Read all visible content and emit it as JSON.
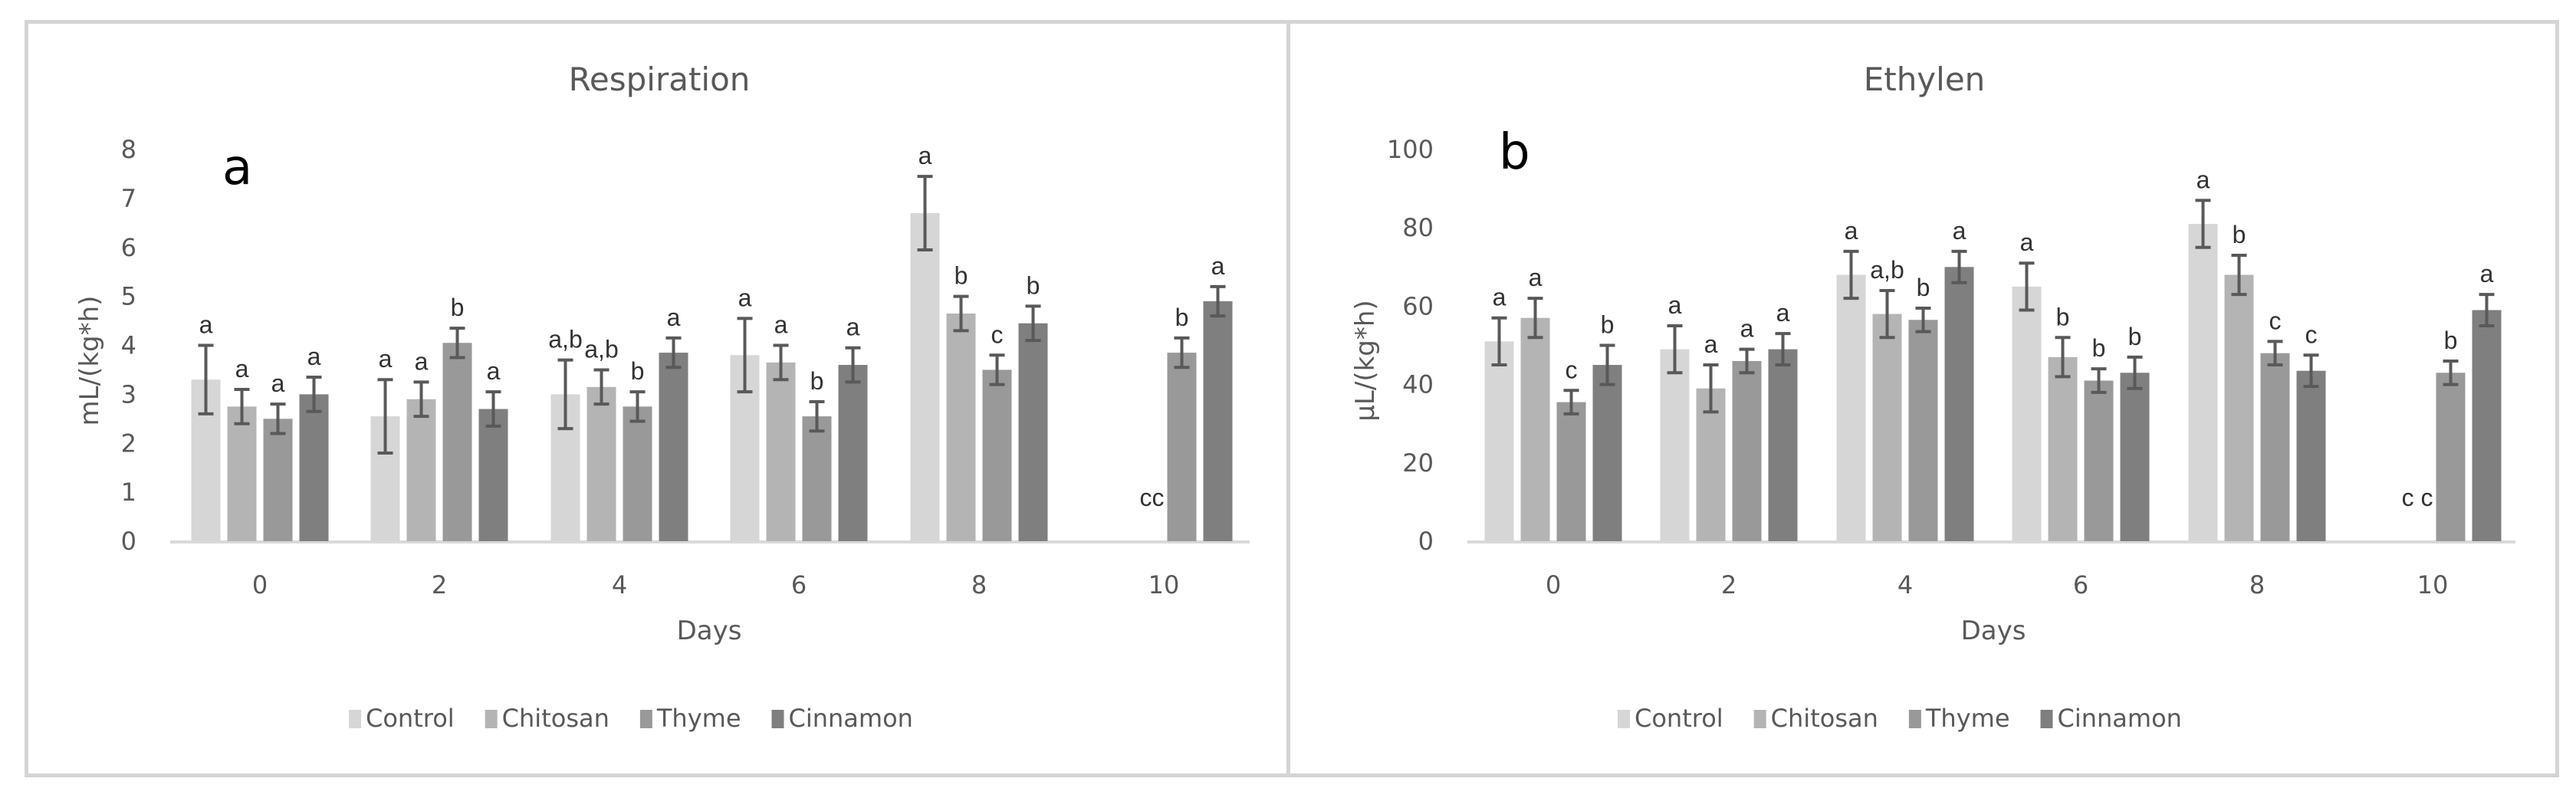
{
  "legend": {
    "series": [
      {
        "name": "Control",
        "color": "#d6d6d6"
      },
      {
        "name": "Chitosan",
        "color": "#b4b4b4"
      },
      {
        "name": "Thyme",
        "color": "#999999"
      },
      {
        "name": "Cinnamon",
        "color": "#7f7f7f"
      }
    ]
  },
  "chart_data": [
    {
      "type": "bar",
      "panel_label": "a",
      "title": "Respiration",
      "xlabel": "Days",
      "ylabel": "mL/(kg*h)",
      "ylim": [
        0,
        8
      ],
      "yticks": [
        0,
        1,
        2,
        3,
        4,
        5,
        6,
        7,
        8
      ],
      "grid": false,
      "legend_position": "bottom",
      "categories": [
        "0",
        "2",
        "4",
        "6",
        "8",
        "10"
      ],
      "series": [
        {
          "name": "Control",
          "values": [
            3.3,
            2.55,
            3.0,
            3.8,
            6.7,
            0
          ],
          "errors": [
            0.7,
            0.75,
            0.7,
            0.75,
            0.75,
            0
          ],
          "letters": [
            "a",
            "a",
            "a,b",
            "a",
            "a",
            "c"
          ]
        },
        {
          "name": "Chitosan",
          "values": [
            2.75,
            2.9,
            3.15,
            3.65,
            4.65,
            0
          ],
          "errors": [
            0.35,
            0.35,
            0.35,
            0.35,
            0.35,
            0
          ],
          "letters": [
            "a",
            "a",
            "a,b",
            "a",
            "b",
            "c"
          ]
        },
        {
          "name": "Thyme",
          "values": [
            2.5,
            4.05,
            2.75,
            2.55,
            3.5,
            3.85
          ],
          "errors": [
            0.3,
            0.3,
            0.3,
            0.3,
            0.3,
            0.3
          ],
          "letters": [
            "a",
            "b",
            "b",
            "b",
            "c",
            "b"
          ]
        },
        {
          "name": "Cinnamon",
          "values": [
            3.0,
            2.7,
            3.85,
            3.6,
            4.45,
            4.9
          ],
          "errors": [
            0.35,
            0.35,
            0.3,
            0.35,
            0.35,
            0.3
          ],
          "letters": [
            "a",
            "a",
            "a",
            "a",
            "b",
            "a"
          ]
        }
      ],
      "annotations": [
        "cc (Control & Chitosan at day 10 = 0)"
      ]
    },
    {
      "type": "bar",
      "panel_label": "b",
      "title": "Ethylen",
      "xlabel": "Days",
      "ylabel": "µL/(kg*h)",
      "ylim": [
        0,
        100
      ],
      "yticks": [
        0,
        20,
        40,
        60,
        80,
        100
      ],
      "grid": false,
      "legend_position": "bottom",
      "categories": [
        "0",
        "2",
        "4",
        "6",
        "8",
        "10"
      ],
      "series": [
        {
          "name": "Control",
          "values": [
            51,
            49,
            68,
            65,
            81,
            0
          ],
          "errors": [
            6,
            6,
            6,
            6,
            6,
            0
          ],
          "letters": [
            "a",
            "a",
            "a",
            "a",
            "a",
            "c"
          ]
        },
        {
          "name": "Chitosan",
          "values": [
            57,
            39,
            58,
            47,
            68,
            0
          ],
          "errors": [
            5,
            6,
            6,
            5,
            5,
            0
          ],
          "letters": [
            "a",
            "a",
            "a,b",
            "b",
            "b",
            "c"
          ]
        },
        {
          "name": "Thyme",
          "values": [
            35.5,
            46,
            56.5,
            41,
            48,
            43
          ],
          "errors": [
            3,
            3,
            3,
            3,
            3,
            3
          ],
          "letters": [
            "c",
            "a",
            "b",
            "b",
            "c",
            "b"
          ]
        },
        {
          "name": "Cinnamon",
          "values": [
            45,
            49,
            70,
            43,
            43.5,
            59
          ],
          "errors": [
            5,
            4,
            4,
            4,
            4,
            4
          ],
          "letters": [
            "b",
            "a",
            "a",
            "b",
            "c",
            "a"
          ]
        }
      ],
      "annotations": [
        "c c (Control & Chitosan at day 10 = 0)"
      ]
    }
  ]
}
